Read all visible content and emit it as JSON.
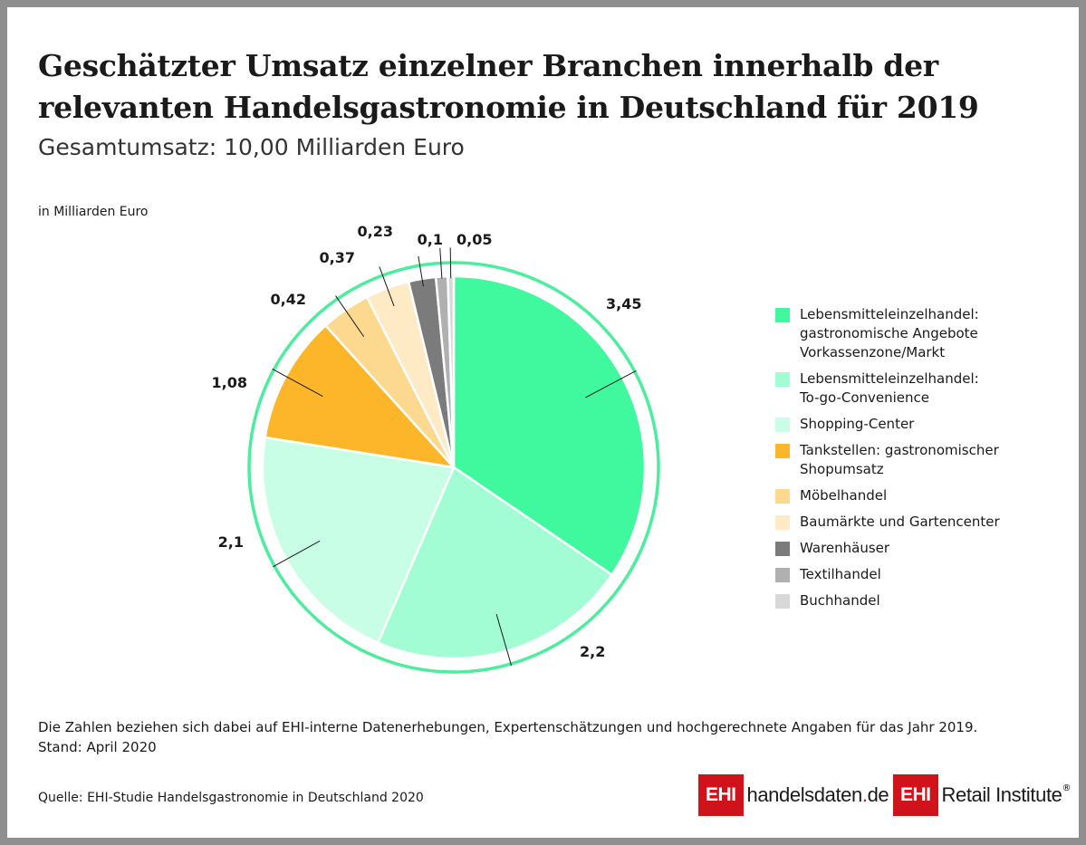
{
  "title_line1": "Geschätzter Umsatz einzelner Branchen innerhalb der",
  "title_line2": "relevanten Handelsgastronomie in Deutschland für 2019",
  "subtitle": "Gesamtumsatz: 10,00 Milliarden Euro",
  "unit_label": "in Milliarden Euro",
  "note_line1": "Die Zahlen beziehen sich dabei auf EHI-interne Datenerhebungen, Expertenschätzungen und hochgerechnete Angaben für das Jahr 2019.",
  "note_line2": "Stand: April 2020",
  "source": "Quelle: EHI-Studie Handelsgastronomie in Deutschland 2020",
  "logos": {
    "ehi": "EHI",
    "handelsdaten_main": "handelsdaten",
    "handelsdaten_dot": ".",
    "handelsdaten_tld": "de",
    "retail": "Retail Institute",
    "registered": "®"
  },
  "chart_data": {
    "type": "pie",
    "ring_color": "#4cee9d",
    "slices": [
      {
        "legend": [
          "Lebensmitteleinzelhandel:",
          "gastronomische Angebote",
          "Vorkassenzone/Markt"
        ],
        "value": 3.45,
        "label": "3,45",
        "color": "#40f99f"
      },
      {
        "legend": [
          "Lebensmitteleinzelhandel:",
          "To-go-Convenience"
        ],
        "value": 2.2,
        "label": "2,2",
        "color": "#a2fdd4"
      },
      {
        "legend": [
          "Shopping-Center"
        ],
        "value": 2.1,
        "label": "2,1",
        "color": "#c9fee6"
      },
      {
        "legend": [
          "Tankstellen: gastronomischer",
          "Shopumsatz"
        ],
        "value": 1.08,
        "label": "1,08",
        "color": "#fdb62a"
      },
      {
        "legend": [
          "Möbelhandel"
        ],
        "value": 0.42,
        "label": "0,42",
        "color": "#fdd88f"
      },
      {
        "legend": [
          "Baumärkte und Gartencenter"
        ],
        "value": 0.37,
        "label": "0,37",
        "color": "#feeac4"
      },
      {
        "legend": [
          "Warenhäuser"
        ],
        "value": 0.23,
        "label": "0,23",
        "color": "#7b7b7b"
      },
      {
        "legend": [
          "Textilhandel"
        ],
        "value": 0.1,
        "label": "0,1",
        "color": "#b0b0b0"
      },
      {
        "legend": [
          "Buchhandel"
        ],
        "value": 0.05,
        "label": "0,05",
        "color": "#d8d8d8"
      }
    ]
  }
}
